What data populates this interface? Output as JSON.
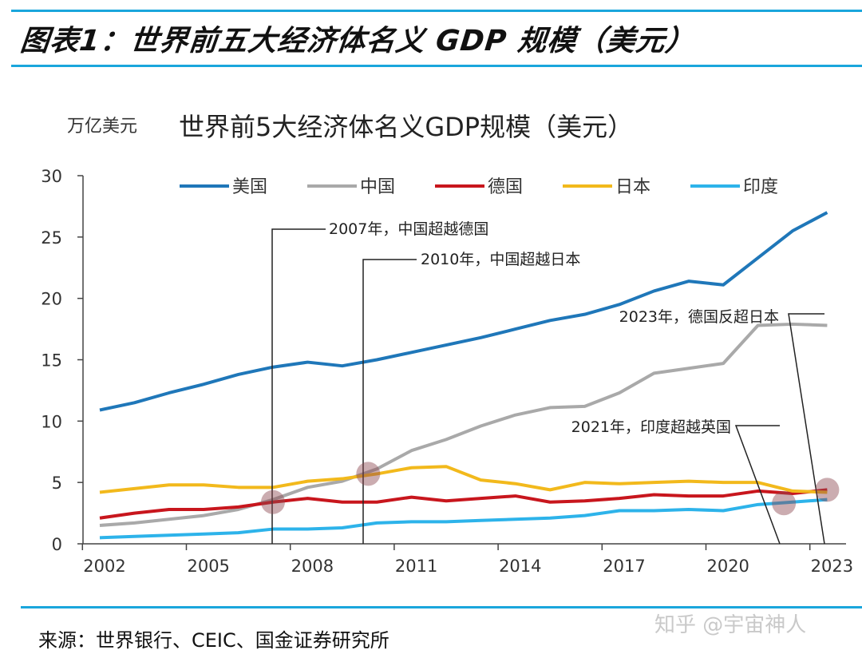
{
  "figure_title": "图表1：世界前五大经济体名义 GDP 规模（美元）",
  "source": "来源：世界银行、CEIC、国金证券研究所",
  "watermark": "知乎 @宇宙神人",
  "chart_data": {
    "type": "line",
    "title": "世界前5大经济体名义GDP规模（美元）",
    "ylabel": "万亿美元",
    "xlabel": "",
    "ylim": [
      0,
      30
    ],
    "yticks": [
      "0",
      "5",
      "10",
      "15",
      "20",
      "25",
      "30"
    ],
    "xticks": [
      "2002",
      "2005",
      "2008",
      "2011",
      "2014",
      "2017",
      "2020",
      "2023"
    ],
    "legend_position": "top",
    "grid": false,
    "x": [
      2002,
      2003,
      2004,
      2005,
      2006,
      2007,
      2008,
      2009,
      2010,
      2011,
      2012,
      2013,
      2014,
      2015,
      2016,
      2017,
      2018,
      2019,
      2020,
      2021,
      2022,
      2023
    ],
    "series": [
      {
        "name": "美国",
        "color": "#1f77b9",
        "values": [
          10.9,
          11.5,
          12.3,
          13.0,
          13.8,
          14.4,
          14.8,
          14.5,
          15.0,
          15.6,
          16.2,
          16.8,
          17.5,
          18.2,
          18.7,
          19.5,
          20.6,
          21.4,
          21.1,
          23.3,
          25.5,
          27.0
        ]
      },
      {
        "name": "中国",
        "color": "#a9a9a9",
        "values": [
          1.5,
          1.7,
          2.0,
          2.3,
          2.8,
          3.6,
          4.6,
          5.1,
          6.1,
          7.6,
          8.5,
          9.6,
          10.5,
          11.1,
          11.2,
          12.3,
          13.9,
          14.3,
          14.7,
          17.8,
          17.9,
          17.8
        ]
      },
      {
        "name": "德国",
        "color": "#c8161d",
        "values": [
          2.1,
          2.5,
          2.8,
          2.8,
          3.0,
          3.4,
          3.7,
          3.4,
          3.4,
          3.8,
          3.5,
          3.7,
          3.9,
          3.4,
          3.5,
          3.7,
          4.0,
          3.9,
          3.9,
          4.3,
          4.1,
          4.4
        ]
      },
      {
        "name": "日本",
        "color": "#f2b91c",
        "values": [
          4.2,
          4.5,
          4.8,
          4.8,
          4.6,
          4.6,
          5.1,
          5.3,
          5.7,
          6.2,
          6.3,
          5.2,
          4.9,
          4.4,
          5.0,
          4.9,
          5.0,
          5.1,
          5.0,
          5.0,
          4.3,
          4.2
        ]
      },
      {
        "name": "印度",
        "color": "#2db3ea",
        "values": [
          0.5,
          0.6,
          0.7,
          0.8,
          0.9,
          1.2,
          1.2,
          1.3,
          1.7,
          1.8,
          1.8,
          1.9,
          2.0,
          2.1,
          2.3,
          2.7,
          2.7,
          2.8,
          2.7,
          3.2,
          3.4,
          3.6
        ]
      }
    ],
    "annotations": [
      {
        "text": "2007年，中国超越德国",
        "x": 2007,
        "y": 3.4
      },
      {
        "text": "2010年，中国超越日本",
        "x": 2009.75,
        "y": 5.7
      },
      {
        "text": "2023年，德国反超日本",
        "x": 2023,
        "y": 4.4
      },
      {
        "text": "2021年，印度超越英国",
        "x": 2021.75,
        "y": 3.3
      }
    ]
  }
}
